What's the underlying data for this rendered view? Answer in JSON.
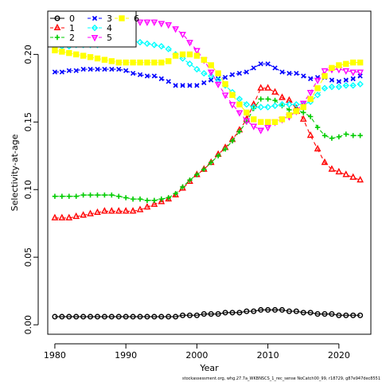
{
  "chart_data": {
    "type": "line",
    "xlabel": "Year",
    "ylabel": "Selectivity-at-age",
    "xlim": [
      1979,
      2024.5
    ],
    "ylim": [
      -0.007,
      0.232
    ],
    "x_ticks": [
      1980,
      1990,
      2000,
      2010,
      2020
    ],
    "y_ticks": [
      0.0,
      0.05,
      0.1,
      0.15,
      0.2
    ],
    "y_tick_labels": [
      "0.00",
      "0.05",
      "0.10",
      "0.15",
      "0.20"
    ],
    "x_tick_labels": [
      "1980",
      "1990",
      "2000",
      "2010",
      "2020"
    ],
    "legend_position": "top-left",
    "footnote": "stockassessment.org, whg.27.7a_WKBNSCS_1_rec_sense NoCatch00_99, r18729, g87e947dec8551",
    "x": [
      1980,
      1981,
      1982,
      1983,
      1984,
      1985,
      1986,
      1987,
      1988,
      1989,
      1990,
      1991,
      1992,
      1993,
      1994,
      1995,
      1996,
      1997,
      1998,
      1999,
      2000,
      2001,
      2002,
      2003,
      2004,
      2005,
      2006,
      2007,
      2008,
      2009,
      2010,
      2011,
      2012,
      2013,
      2014,
      2015,
      2016,
      2017,
      2018,
      2019,
      2020,
      2021,
      2022,
      2023
    ],
    "series": [
      {
        "name": "0",
        "color": "#000000",
        "marker": "circle",
        "linestyle": "solid",
        "values": [
          0.006,
          0.006,
          0.006,
          0.006,
          0.006,
          0.006,
          0.006,
          0.006,
          0.006,
          0.006,
          0.006,
          0.006,
          0.006,
          0.006,
          0.006,
          0.006,
          0.006,
          0.006,
          0.007,
          0.007,
          0.007,
          0.008,
          0.008,
          0.008,
          0.009,
          0.009,
          0.009,
          0.01,
          0.01,
          0.011,
          0.011,
          0.011,
          0.011,
          0.01,
          0.01,
          0.009,
          0.009,
          0.008,
          0.008,
          0.008,
          0.007,
          0.007,
          0.007,
          0.007
        ]
      },
      {
        "name": "1",
        "color": "#ff0000",
        "marker": "triangle-up",
        "linestyle": "dashed",
        "values": [
          0.079,
          0.079,
          0.079,
          0.08,
          0.081,
          0.082,
          0.083,
          0.084,
          0.084,
          0.084,
          0.084,
          0.084,
          0.085,
          0.087,
          0.089,
          0.091,
          0.093,
          0.096,
          0.101,
          0.106,
          0.111,
          0.115,
          0.12,
          0.126,
          0.131,
          0.137,
          0.144,
          0.152,
          0.163,
          0.175,
          0.175,
          0.172,
          0.168,
          0.166,
          0.16,
          0.152,
          0.14,
          0.13,
          0.12,
          0.115,
          0.113,
          0.111,
          0.109,
          0.107
        ]
      },
      {
        "name": "2",
        "color": "#00cc00",
        "marker": "plus",
        "linestyle": "dashed",
        "values": [
          0.095,
          0.095,
          0.095,
          0.095,
          0.096,
          0.096,
          0.096,
          0.096,
          0.096,
          0.095,
          0.094,
          0.093,
          0.093,
          0.092,
          0.092,
          0.093,
          0.094,
          0.097,
          0.102,
          0.107,
          0.111,
          0.115,
          0.12,
          0.125,
          0.13,
          0.136,
          0.143,
          0.15,
          0.16,
          0.167,
          0.167,
          0.166,
          0.162,
          0.159,
          0.159,
          0.157,
          0.154,
          0.146,
          0.14,
          0.138,
          0.139,
          0.141,
          0.14,
          0.14
        ]
      },
      {
        "name": "3",
        "color": "#0000ff",
        "marker": "cross",
        "linestyle": "dashed",
        "values": [
          0.187,
          0.187,
          0.188,
          0.188,
          0.189,
          0.189,
          0.189,
          0.189,
          0.189,
          0.189,
          0.188,
          0.186,
          0.185,
          0.184,
          0.184,
          0.182,
          0.18,
          0.177,
          0.177,
          0.177,
          0.177,
          0.179,
          0.181,
          0.182,
          0.183,
          0.185,
          0.186,
          0.187,
          0.19,
          0.193,
          0.193,
          0.19,
          0.187,
          0.186,
          0.186,
          0.184,
          0.182,
          0.183,
          0.183,
          0.181,
          0.18,
          0.181,
          0.182,
          0.184
        ]
      },
      {
        "name": "4",
        "color": "#00ffff",
        "marker": "diamond",
        "linestyle": "dashed",
        "values": [
          0.206,
          0.206,
          0.206,
          0.207,
          0.207,
          0.207,
          0.207,
          0.208,
          0.209,
          0.21,
          0.21,
          0.21,
          0.209,
          0.208,
          0.207,
          0.206,
          0.204,
          0.2,
          0.197,
          0.193,
          0.189,
          0.186,
          0.184,
          0.181,
          0.177,
          0.172,
          0.167,
          0.163,
          0.161,
          0.161,
          0.161,
          0.162,
          0.163,
          0.163,
          0.163,
          0.163,
          0.165,
          0.17,
          0.175,
          0.176,
          0.176,
          0.177,
          0.177,
          0.178
        ]
      },
      {
        "name": "5",
        "color": "#ff00ff",
        "marker": "triangle-down",
        "linestyle": "dashed",
        "values": [
          0.21,
          0.212,
          0.214,
          0.216,
          0.218,
          0.219,
          0.22,
          0.221,
          0.222,
          0.222,
          0.223,
          0.224,
          0.224,
          0.224,
          0.224,
          0.223,
          0.222,
          0.219,
          0.215,
          0.209,
          0.203,
          0.196,
          0.187,
          0.178,
          0.17,
          0.163,
          0.157,
          0.151,
          0.147,
          0.144,
          0.146,
          0.15,
          0.152,
          0.154,
          0.158,
          0.164,
          0.172,
          0.181,
          0.188,
          0.189,
          0.189,
          0.188,
          0.187,
          0.187
        ]
      },
      {
        "name": "6",
        "color": "#ffff00",
        "marker": "square",
        "linestyle": "dashed",
        "values": [
          0.203,
          0.202,
          0.201,
          0.2,
          0.199,
          0.198,
          0.197,
          0.196,
          0.195,
          0.194,
          0.194,
          0.194,
          0.194,
          0.194,
          0.194,
          0.194,
          0.195,
          0.199,
          0.2,
          0.2,
          0.199,
          0.196,
          0.192,
          0.186,
          0.178,
          0.17,
          0.163,
          0.157,
          0.152,
          0.15,
          0.15,
          0.15,
          0.152,
          0.155,
          0.158,
          0.161,
          0.167,
          0.175,
          0.184,
          0.19,
          0.192,
          0.193,
          0.194,
          0.194
        ]
      }
    ]
  }
}
